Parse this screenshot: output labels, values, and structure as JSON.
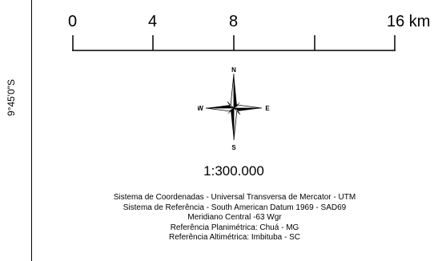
{
  "map": {
    "latitude_label": "9°45'0\"S",
    "scale_bar": {
      "ticks": [
        "0",
        "4",
        "8",
        "16 km"
      ],
      "values_km": [
        0,
        4,
        8,
        12,
        16
      ],
      "unit": "km"
    },
    "north_arrow": {
      "north": "N",
      "south": "S",
      "east": "E",
      "west": "W"
    },
    "scale_ratio": "1:300.000",
    "notes": [
      "Sistema de Coordenadas - Universal Transversa de Mercator - UTM",
      "Sistema de Referência - South American Datum 1969 - SAD69",
      "Meridiano Central -63 Wgr",
      "Referência Planimétrica: Chuá - MG",
      "Referência Altimétrica: Imbituba - SC"
    ]
  }
}
